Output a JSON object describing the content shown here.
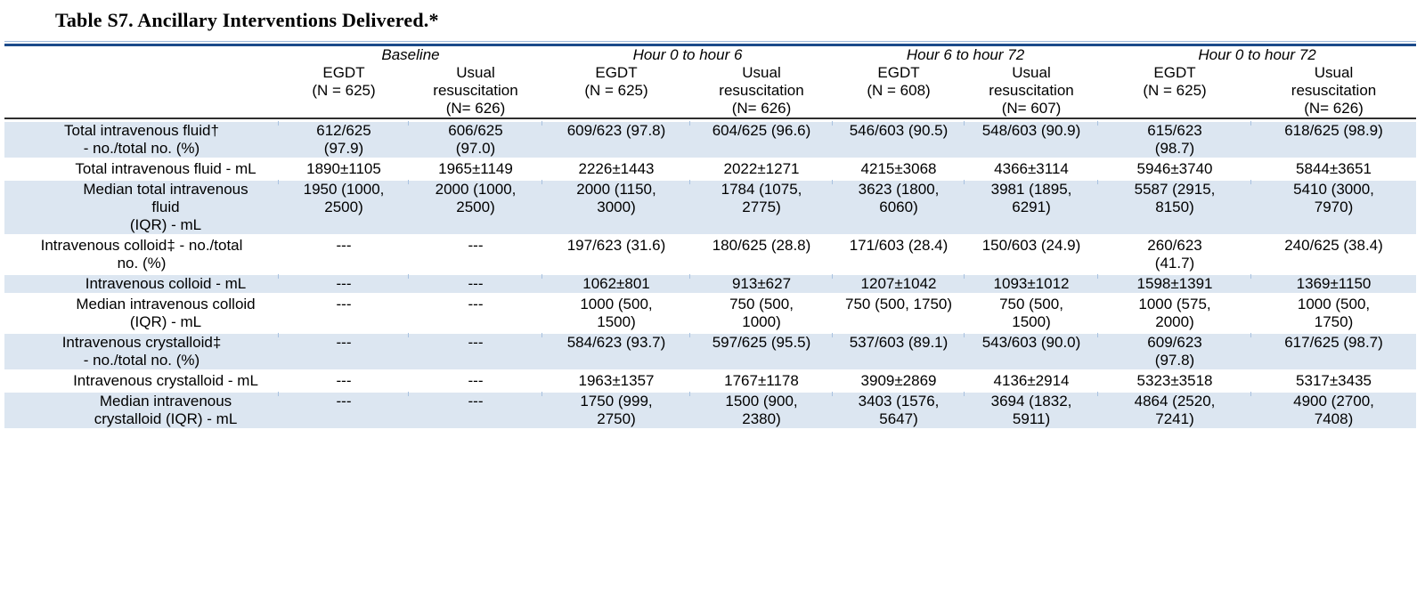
{
  "title": "Table S7. Ancillary Interventions Delivered.*",
  "colors": {
    "row_shade": "#dce6f1",
    "rule_dark": "#1b4a8a",
    "rule_light": "#9fb9d9",
    "header_border": "#2e2e2e",
    "text": "#000000"
  },
  "table": {
    "col_groups": [
      {
        "label": "Baseline",
        "span": 2
      },
      {
        "label": "Hour 0 to hour 6",
        "span": 2
      },
      {
        "label": "Hour 6 to hour 72",
        "span": 2
      },
      {
        "label": "Hour 0 to hour 72",
        "span": 2
      }
    ],
    "columns": [
      "EGDT\n(N = 625)",
      "Usual\nresuscitation\n(N= 626)",
      "EGDT\n(N = 625)",
      "Usual\nresuscitation\n(N= 626)",
      "EGDT\n(N = 608)",
      "Usual\nresuscitation\n(N= 607)",
      "EGDT\n(N = 625)",
      "Usual\nresuscitation\n(N= 626)"
    ],
    "rows": [
      {
        "label": "Total intravenous fluid†\n- no./total no. (%)",
        "indent": false,
        "shaded": true,
        "values": [
          "612/625\n(97.9)",
          "606/625\n(97.0)",
          "609/623 (97.8)",
          "604/625 (96.6)",
          "546/603 (90.5)",
          "548/603 (90.9)",
          "615/623\n(98.7)",
          "618/625 (98.9)"
        ]
      },
      {
        "label": "Total intravenous fluid - mL",
        "indent": true,
        "shaded": false,
        "values": [
          "1890±1105",
          "1965±1149",
          "2226±1443",
          "2022±1271",
          "4215±3068",
          "4366±3114",
          "5946±3740",
          "5844±3651"
        ]
      },
      {
        "label": "Median total intravenous\nfluid\n(IQR) - mL",
        "indent": true,
        "shaded": true,
        "values": [
          "1950 (1000,\n2500)",
          "2000 (1000,\n2500)",
          "2000 (1150,\n3000)",
          "1784 (1075,\n2775)",
          "3623 (1800,\n6060)",
          "3981 (1895,\n6291)",
          "5587 (2915,\n8150)",
          "5410 (3000,\n7970)"
        ]
      },
      {
        "label": "Intravenous colloid‡ - no./total\nno. (%)",
        "indent": false,
        "shaded": false,
        "values": [
          "---",
          "---",
          "197/623 (31.6)",
          "180/625 (28.8)",
          "171/603 (28.4)",
          "150/603 (24.9)",
          "260/623\n(41.7)",
          "240/625 (38.4)"
        ]
      },
      {
        "label": "Intravenous colloid - mL",
        "indent": true,
        "shaded": true,
        "values": [
          "---",
          "---",
          "1062±801",
          "913±627",
          "1207±1042",
          "1093±1012",
          "1598±1391",
          "1369±1150"
        ]
      },
      {
        "label": "Median intravenous colloid\n(IQR) - mL",
        "indent": true,
        "shaded": false,
        "values": [
          "---",
          "---",
          "1000 (500,\n1500)",
          "750 (500,\n1000)",
          "750 (500, 1750)",
          "750 (500,\n1500)",
          "1000 (575,\n2000)",
          "1000 (500,\n1750)"
        ]
      },
      {
        "label": "Intravenous crystalloid‡\n- no./total no. (%)",
        "indent": false,
        "shaded": true,
        "values": [
          "---",
          "---",
          "584/623 (93.7)",
          "597/625 (95.5)",
          "537/603 (89.1)",
          "543/603 (90.0)",
          "609/623\n(97.8)",
          "617/625 (98.7)"
        ]
      },
      {
        "label": "Intravenous crystalloid - mL",
        "indent": true,
        "shaded": false,
        "values": [
          "---",
          "---",
          "1963±1357",
          "1767±1178",
          "3909±2869",
          "4136±2914",
          "5323±3518",
          "5317±3435"
        ]
      },
      {
        "label": "Median intravenous\ncrystalloid (IQR) - mL",
        "indent": true,
        "shaded": true,
        "values": [
          "---",
          "---",
          "1750 (999,\n2750)",
          "1500 (900,\n2380)",
          "3403 (1576,\n5647)",
          "3694 (1832,\n5911)",
          "4864 (2520,\n7241)",
          "4900 (2700,\n7408)"
        ]
      }
    ]
  }
}
